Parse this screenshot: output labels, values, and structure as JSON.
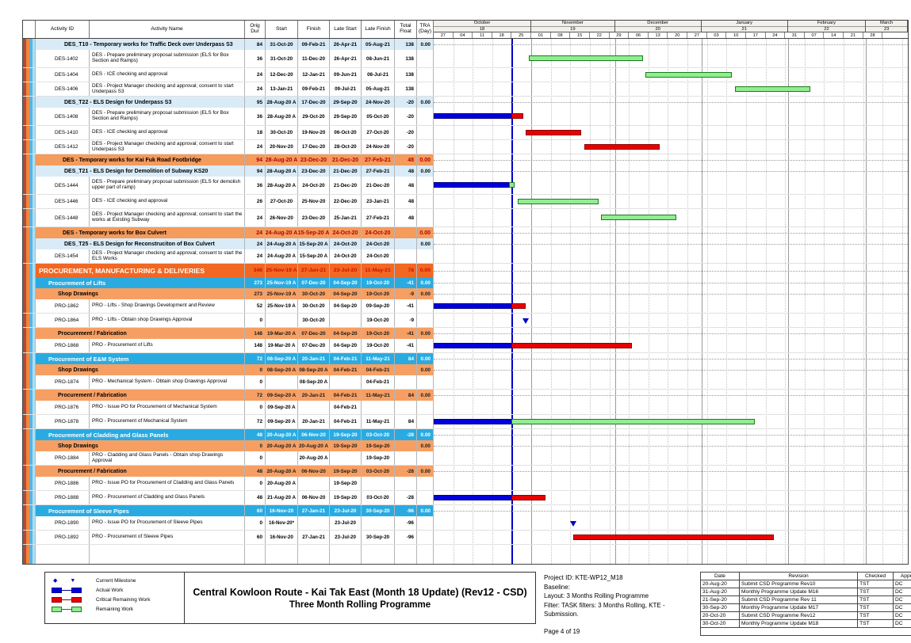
{
  "columns": [
    {
      "key": "id",
      "label": "Activity ID"
    },
    {
      "key": "name",
      "label": "Activity Name"
    },
    {
      "key": "dur",
      "label": "Orig Dur"
    },
    {
      "key": "start",
      "label": "Start"
    },
    {
      "key": "finish",
      "label": "Finish"
    },
    {
      "key": "late_start",
      "label": "Late Start"
    },
    {
      "key": "late_finish",
      "label": "Late Finish"
    },
    {
      "key": "float",
      "label": "Total Float"
    },
    {
      "key": "tra",
      "label": "TRA (Day)"
    }
  ],
  "chart_data": {
    "type": "gantt",
    "timeline": {
      "domain_start": "2020-09-27",
      "total_days": 170,
      "data_date": "2020-10-25",
      "months": [
        {
          "name": "October",
          "num": "18",
          "start": "2020-09-27",
          "end": "2020-11-01"
        },
        {
          "name": "November",
          "num": "19",
          "start": "2020-11-01",
          "end": "2020-12-01"
        },
        {
          "name": "December",
          "num": "20",
          "start": "2020-12-01",
          "end": "2021-01-01"
        },
        {
          "name": "January",
          "num": "21",
          "start": "2021-01-01",
          "end": "2021-02-01"
        },
        {
          "name": "February",
          "num": "22",
          "start": "2021-02-01",
          "end": "2021-03-01"
        },
        {
          "name": "March",
          "num": "23",
          "start": "2021-03-01",
          "end": "2021-03-16"
        }
      ],
      "weeks": [
        "27",
        "04",
        "11",
        "18",
        "25",
        "01",
        "08",
        "15",
        "22",
        "29",
        "06",
        "13",
        "20",
        "27",
        "03",
        "10",
        "17",
        "24",
        "31",
        "07",
        "14",
        "21",
        "28"
      ]
    },
    "rows": [
      {
        "kind": "wbs",
        "name": "DES_T10 - Temporary works for Traffic Deck over Underpass S3",
        "dur": "84",
        "start": "31-Oct-20",
        "finish": "09-Feb-21",
        "late_start": "26-Apr-21",
        "late_finish": "05-Aug-21",
        "float": "138",
        "tra": "0.00",
        "bars": []
      },
      {
        "kind": "task",
        "lines": 2,
        "id": "DES-1402",
        "name": "DES - Prepare preliminary proposal submission (ELS for Box Section and Ramps)",
        "dur": "36",
        "start": "31-Oct-20",
        "finish": "11-Dec-20",
        "late_start": "26-Apr-21",
        "late_finish": "08-Jun-21",
        "float": "138",
        "tra": "",
        "bars": [
          {
            "kind": "remaining",
            "s": "2020-10-31",
            "e": "2020-12-11"
          }
        ]
      },
      {
        "kind": "task",
        "id": "DES-1404",
        "name": "DES - ICE checking and approval",
        "dur": "24",
        "start": "12-Dec-20",
        "finish": "12-Jan-21",
        "late_start": "09-Jun-21",
        "late_finish": "08-Jul-21",
        "float": "138",
        "tra": "",
        "bars": [
          {
            "kind": "remaining",
            "s": "2020-12-12",
            "e": "2021-01-12"
          }
        ]
      },
      {
        "kind": "task",
        "id": "DES-1406",
        "name": "DES - Project Manager checking and approval; consent to start Underpass S3",
        "dur": "24",
        "start": "13-Jan-21",
        "finish": "09-Feb-21",
        "late_start": "09-Jul-21",
        "late_finish": "05-Aug-21",
        "float": "138",
        "tra": "",
        "bars": [
          {
            "kind": "remaining",
            "s": "2021-01-13",
            "e": "2021-02-09"
          }
        ]
      },
      {
        "kind": "wbs",
        "name": "DES_T22 - ELS Design for Underpass S3",
        "dur": "95",
        "start": "28-Aug-20 A",
        "finish": "17-Dec-20",
        "late_start": "29-Sep-20",
        "late_finish": "24-Nov-20",
        "float": "-20",
        "tra": "0.00",
        "bars": []
      },
      {
        "kind": "task",
        "lines": 2,
        "id": "DES-1408",
        "name": "DES - Prepare preliminary proposal submission (ELS for Box Section and Ramps)",
        "dur": "36",
        "start": "28-Aug-20 A",
        "finish": "29-Oct-20",
        "late_start": "29-Sep-20",
        "late_finish": "05-Oct-20",
        "float": "-20",
        "tra": "",
        "bars": [
          {
            "kind": "actual",
            "s": "2020-09-27",
            "e": "2020-10-25"
          },
          {
            "kind": "critical",
            "s": "2020-10-25",
            "e": "2020-10-29"
          }
        ]
      },
      {
        "kind": "task",
        "id": "DES-1410",
        "name": "DES - ICE checking and approval",
        "dur": "18",
        "start": "30-Oct-20",
        "finish": "19-Nov-20",
        "late_start": "06-Oct-20",
        "late_finish": "27-Oct-20",
        "float": "-20",
        "tra": "",
        "bars": [
          {
            "kind": "critical",
            "s": "2020-10-30",
            "e": "2020-11-19"
          }
        ]
      },
      {
        "kind": "task",
        "id": "DES-1412",
        "name": "DES - Project Manager checking and approval; consent to start Underpass S3",
        "dur": "24",
        "start": "20-Nov-20",
        "finish": "17-Dec-20",
        "late_start": "28-Oct-20",
        "late_finish": "24-Nov-20",
        "float": "-20",
        "tra": "",
        "bars": [
          {
            "kind": "critical",
            "s": "2020-11-20",
            "e": "2020-12-17"
          }
        ]
      },
      {
        "kind": "l1",
        "name": "DES - Temporary works for Kai Fuk Road Footbridge",
        "dur": "94",
        "start": "28-Aug-20 A",
        "finish": "23-Dec-20",
        "late_start": "21-Dec-20",
        "late_finish": "27-Feb-21",
        "float": "48",
        "tra": "0.00",
        "bars": []
      },
      {
        "kind": "wbs",
        "name": "DES_T21 - ELS Design for Demolition of Subway KS20",
        "dur": "94",
        "start": "28-Aug-20 A",
        "finish": "23-Dec-20",
        "late_start": "21-Dec-20",
        "late_finish": "27-Feb-21",
        "float": "48",
        "tra": "0.00",
        "bars": []
      },
      {
        "kind": "task",
        "lines": 2,
        "id": "DES-1444",
        "name": "DES - Prepare preliminary proposal submission (ELS for demolish upper part of ramp)",
        "dur": "36",
        "start": "28-Aug-20 A",
        "finish": "24-Oct-20",
        "late_start": "21-Dec-20",
        "late_finish": "21-Dec-20",
        "float": "48",
        "tra": "",
        "bars": [
          {
            "kind": "actual",
            "s": "2020-09-27",
            "e": "2020-10-24"
          },
          {
            "kind": "remaining",
            "s": "2020-10-24",
            "e": "2020-10-26"
          }
        ]
      },
      {
        "kind": "task",
        "id": "DES-1446",
        "name": "DES - ICE checking and approval",
        "dur": "26",
        "start": "27-Oct-20",
        "finish": "25-Nov-20",
        "late_start": "22-Dec-20",
        "late_finish": "23-Jan-21",
        "float": "48",
        "tra": "",
        "bars": [
          {
            "kind": "remaining",
            "s": "2020-10-27",
            "e": "2020-11-25"
          }
        ]
      },
      {
        "kind": "task",
        "lines": 2,
        "id": "DES-1448",
        "name": "DES - Project Manager checking and approval; consent to start the works at Existing Subway",
        "dur": "24",
        "start": "26-Nov-20",
        "finish": "23-Dec-20",
        "late_start": "25-Jan-21",
        "late_finish": "27-Feb-21",
        "float": "48",
        "tra": "",
        "bars": [
          {
            "kind": "remaining",
            "s": "2020-11-26",
            "e": "2020-12-23"
          }
        ]
      },
      {
        "kind": "l1",
        "name": "DES - Temporary works for Box Culvert",
        "dur": "24",
        "start": "24-Aug-20 A",
        "finish": "15-Sep-20 A",
        "late_start": "24-Oct-20",
        "late_finish": "24-Oct-20",
        "float": "",
        "tra": "0.00",
        "bars": []
      },
      {
        "kind": "wbs",
        "name": "DES_T25 - ELS Design for Reconstruciton of Box Culvert",
        "dur": "24",
        "start": "24-Aug-20 A",
        "finish": "15-Sep-20 A",
        "late_start": "24-Oct-20",
        "late_finish": "24-Oct-20",
        "float": "",
        "tra": "0.00",
        "bars": []
      },
      {
        "kind": "task",
        "id": "DES-1454",
        "name": "DES - Project Manager checking and approval; consent to start the ELS Works",
        "dur": "24",
        "start": "24-Aug-20 A",
        "finish": "15-Sep-20 A",
        "late_start": "24-Oct-20",
        "late_finish": "24-Oct-20",
        "float": "",
        "tra": "",
        "bars": []
      },
      {
        "kind": "l0",
        "name": "PROCUREMENT, MANUFACTURING & DELIVERIES",
        "dur": "346",
        "start": "25-Nov-19 A",
        "finish": "27-Jan-21",
        "late_start": "23-Jul-20",
        "late_finish": "11-May-21",
        "float": "78",
        "tra": "0.00",
        "bars": []
      },
      {
        "kind": "blue",
        "name": "Procurement of Lifts",
        "dur": "273",
        "start": "25-Nov-19 A",
        "finish": "07-Dec-20",
        "late_start": "04-Sep-20",
        "late_finish": "19-Oct-20",
        "float": "-41",
        "tra": "0.00",
        "bars": []
      },
      {
        "kind": "sub",
        "name": "Shop Drawings",
        "dur": "273",
        "start": "25-Nov-19 A",
        "finish": "30-Oct-20",
        "late_start": "04-Sep-20",
        "late_finish": "19-Oct-20",
        "float": "-9",
        "tra": "0.00",
        "bars": []
      },
      {
        "kind": "task",
        "id": "PRO-1862",
        "name": "PRO - Lifts - Shop Drawings Development and Review",
        "dur": "52",
        "start": "25-Nov-19 A",
        "finish": "30-Oct-20",
        "late_start": "04-Sep-20",
        "late_finish": "09-Sep-20",
        "float": "-41",
        "tra": "",
        "bars": [
          {
            "kind": "actual",
            "s": "2020-09-27",
            "e": "2020-10-25"
          },
          {
            "kind": "critical",
            "s": "2020-10-25",
            "e": "2020-10-30"
          }
        ]
      },
      {
        "kind": "task",
        "id": "PRO-1864",
        "name": "PRO - Lifts - Obtain shop Drawings Approval",
        "dur": "0",
        "start": "",
        "finish": "30-Oct-20",
        "late_start": "",
        "late_finish": "19-Oct-20",
        "float": "-9",
        "tra": "",
        "bars": [
          {
            "kind": "milestone",
            "s": "2020-10-30",
            "e": "2020-10-30"
          }
        ]
      },
      {
        "kind": "sub",
        "name": "Procurement / Fabrication",
        "dur": "148",
        "start": "19-Mar-20 A",
        "finish": "07-Dec-20",
        "late_start": "04-Sep-20",
        "late_finish": "19-Oct-20",
        "float": "-41",
        "tra": "0.00",
        "bars": []
      },
      {
        "kind": "task",
        "id": "PRO-1868",
        "name": "PRO - Procurement of Lifts",
        "dur": "148",
        "start": "19-Mar-20 A",
        "finish": "07-Dec-20",
        "late_start": "04-Sep-20",
        "late_finish": "19-Oct-20",
        "float": "-41",
        "tra": "",
        "bars": [
          {
            "kind": "actual",
            "s": "2020-09-27",
            "e": "2020-10-25"
          },
          {
            "kind": "critical",
            "s": "2020-10-25",
            "e": "2020-12-07"
          }
        ]
      },
      {
        "kind": "blue",
        "name": "Procurement of E&M System",
        "dur": "72",
        "start": "08-Sep-20 A",
        "finish": "20-Jan-21",
        "late_start": "04-Feb-21",
        "late_finish": "11-May-21",
        "float": "84",
        "tra": "0.00",
        "bars": []
      },
      {
        "kind": "sub",
        "name": "Shop Drawings",
        "dur": "0",
        "start": "08-Sep-20 A",
        "finish": "08-Sep-20 A",
        "late_start": "04-Feb-21",
        "late_finish": "04-Feb-21",
        "float": "",
        "tra": "0.00",
        "bars": []
      },
      {
        "kind": "task",
        "id": "PRO-1874",
        "name": "PRO - Mechanical System - Obtain shop Drawings Approval",
        "dur": "0",
        "start": "",
        "finish": "08-Sep-20 A",
        "late_start": "",
        "late_finish": "04-Feb-21",
        "float": "",
        "tra": "",
        "bars": []
      },
      {
        "kind": "sub",
        "name": "Procurement / Fabrication",
        "dur": "72",
        "start": "09-Sep-20 A",
        "finish": "20-Jan-21",
        "late_start": "04-Feb-21",
        "late_finish": "11-May-21",
        "float": "84",
        "tra": "0.00",
        "bars": []
      },
      {
        "kind": "task",
        "id": "PRO-1876",
        "name": "PRO - Issue PO for Procurement of Mechanical System",
        "dur": "0",
        "start": "09-Sep-20 A",
        "finish": "",
        "late_start": "04-Feb-21",
        "late_finish": "",
        "float": "",
        "tra": "",
        "bars": []
      },
      {
        "kind": "task",
        "id": "PRO-1878",
        "name": "PRO - Procurement of  Mechanical System",
        "dur": "72",
        "start": "09-Sep-20 A",
        "finish": "20-Jan-21",
        "late_start": "04-Feb-21",
        "late_finish": "11-May-21",
        "float": "84",
        "tra": "",
        "bars": [
          {
            "kind": "actual",
            "s": "2020-09-27",
            "e": "2020-10-25"
          },
          {
            "kind": "remaining",
            "s": "2020-10-25",
            "e": "2021-01-20"
          }
        ]
      },
      {
        "kind": "blue",
        "name": "Procurement of Cladding and Glass Panels",
        "dur": "48",
        "start": "20-Aug-20 A",
        "finish": "06-Nov-20",
        "late_start": "19-Sep-20",
        "late_finish": "03-Oct-20",
        "float": "-28",
        "tra": "0.00",
        "bars": []
      },
      {
        "kind": "sub",
        "name": "Shop Drawings",
        "dur": "0",
        "start": "20-Aug-20 A",
        "finish": "20-Aug-20 A",
        "late_start": "19-Sep-20",
        "late_finish": "19-Sep-20",
        "float": "",
        "tra": "0.00",
        "bars": []
      },
      {
        "kind": "task",
        "id": "PRO-1884",
        "name": "PRO - Cladding and Glass Panels - Obtain shop Drawings Approval",
        "dur": "0",
        "start": "",
        "finish": "20-Aug-20 A",
        "late_start": "",
        "late_finish": "19-Sep-20",
        "float": "",
        "tra": "",
        "bars": []
      },
      {
        "kind": "sub",
        "name": "Procurement / Fabrication",
        "dur": "48",
        "start": "20-Aug-20 A",
        "finish": "06-Nov-20",
        "late_start": "19-Sep-20",
        "late_finish": "03-Oct-20",
        "float": "-28",
        "tra": "0.00",
        "bars": []
      },
      {
        "kind": "task",
        "id": "PRO-1886",
        "name": "PRO - Issue PO for Procurement of Cladding and Glass Panels",
        "dur": "0",
        "start": "20-Aug-20 A",
        "finish": "",
        "late_start": "19-Sep-20",
        "late_finish": "",
        "float": "",
        "tra": "",
        "bars": []
      },
      {
        "kind": "task",
        "id": "PRO-1888",
        "name": "PRO - Procurement of Cladding and Glass Panels",
        "dur": "48",
        "start": "21-Aug-20 A",
        "finish": "06-Nov-20",
        "late_start": "19-Sep-20",
        "late_finish": "03-Oct-20",
        "float": "-28",
        "tra": "",
        "bars": [
          {
            "kind": "actual",
            "s": "2020-09-27",
            "e": "2020-10-25"
          },
          {
            "kind": "critical",
            "s": "2020-10-25",
            "e": "2020-11-06"
          }
        ]
      },
      {
        "kind": "blue",
        "name": "Procurement of Sleeve Pipes",
        "dur": "60",
        "start": "16-Nov-20",
        "finish": "27-Jan-21",
        "late_start": "23-Jul-20",
        "late_finish": "30-Sep-20",
        "float": "-96",
        "tra": "0.00",
        "bars": []
      },
      {
        "kind": "task",
        "id": "PRO-1890",
        "name": "PRO - Issue PO for Procurement of Sleeve Pipes",
        "dur": "0",
        "start": "16-Nov-20*",
        "finish": "",
        "late_start": "23-Jul-20",
        "late_finish": "",
        "float": "-96",
        "tra": "",
        "bars": [
          {
            "kind": "milestone",
            "s": "2020-11-16",
            "e": "2020-11-16"
          }
        ]
      },
      {
        "kind": "task",
        "id": "PRO-1892",
        "name": "PRO - Procurement of Sleeve Pipes",
        "dur": "60",
        "start": "16-Nov-20",
        "finish": "27-Jan-21",
        "late_start": "23-Jul-20",
        "late_finish": "30-Sep-20",
        "float": "-96",
        "tra": "",
        "bars": [
          {
            "kind": "critical",
            "s": "2020-11-16",
            "e": "2021-01-27"
          }
        ]
      }
    ]
  },
  "legend": {
    "items": [
      {
        "icon": "milestone",
        "label": "Current Milestone"
      },
      {
        "icon": "actual",
        "label": "Actual Work"
      },
      {
        "icon": "critical",
        "label": "Critical Remaining Work"
      },
      {
        "icon": "remaining",
        "label": "Remaining Work"
      }
    ]
  },
  "title": {
    "line1": "Central Kowloon Route - Kai Tak East (Month 18 Update) (Rev12 - CSD)",
    "line2": "Three Month Rolling Programme"
  },
  "info": {
    "lines": [
      "Project ID: KTE-WP12_M18",
      "Baseline:",
      "Layout: 3 Months Rolling Programme",
      "Filter: TASK filters: 3 Months Rolling, KTE - Submission."
    ],
    "page": "Page 4 of 19"
  },
  "revisions": {
    "headers": [
      "Date",
      "Revision",
      "Checked",
      "Approved"
    ],
    "rows": [
      [
        "20-Aug-20",
        "Submit CSD Programme Rev10",
        "TST",
        "DC"
      ],
      [
        "31-Aug-20",
        "Monthly Programme Update M16",
        "TST",
        "DC"
      ],
      [
        "21-Sep-20",
        "Submit CSD Programme Rev 11",
        "TST",
        "DC"
      ],
      [
        "30-Sep-20",
        "Monthly Programme Update M17",
        "TST",
        "DC"
      ],
      [
        "20-Oct-20",
        "Submit CSD Programme Rev12",
        "TST",
        "DC"
      ],
      [
        "30-Oct-20",
        "Monthly Programme Update M18",
        "TST",
        "DC"
      ]
    ]
  },
  "colors": {
    "actual_work": "#0000dd",
    "critical_remaining": "#e80000",
    "remaining_work": "#90EE90",
    "data_date_line": "#0000cc",
    "wbs_band": "#D9EBF7",
    "orange_band": "#F79F63",
    "procurement_band": "#F26722",
    "blue_band": "#29ABE2"
  }
}
